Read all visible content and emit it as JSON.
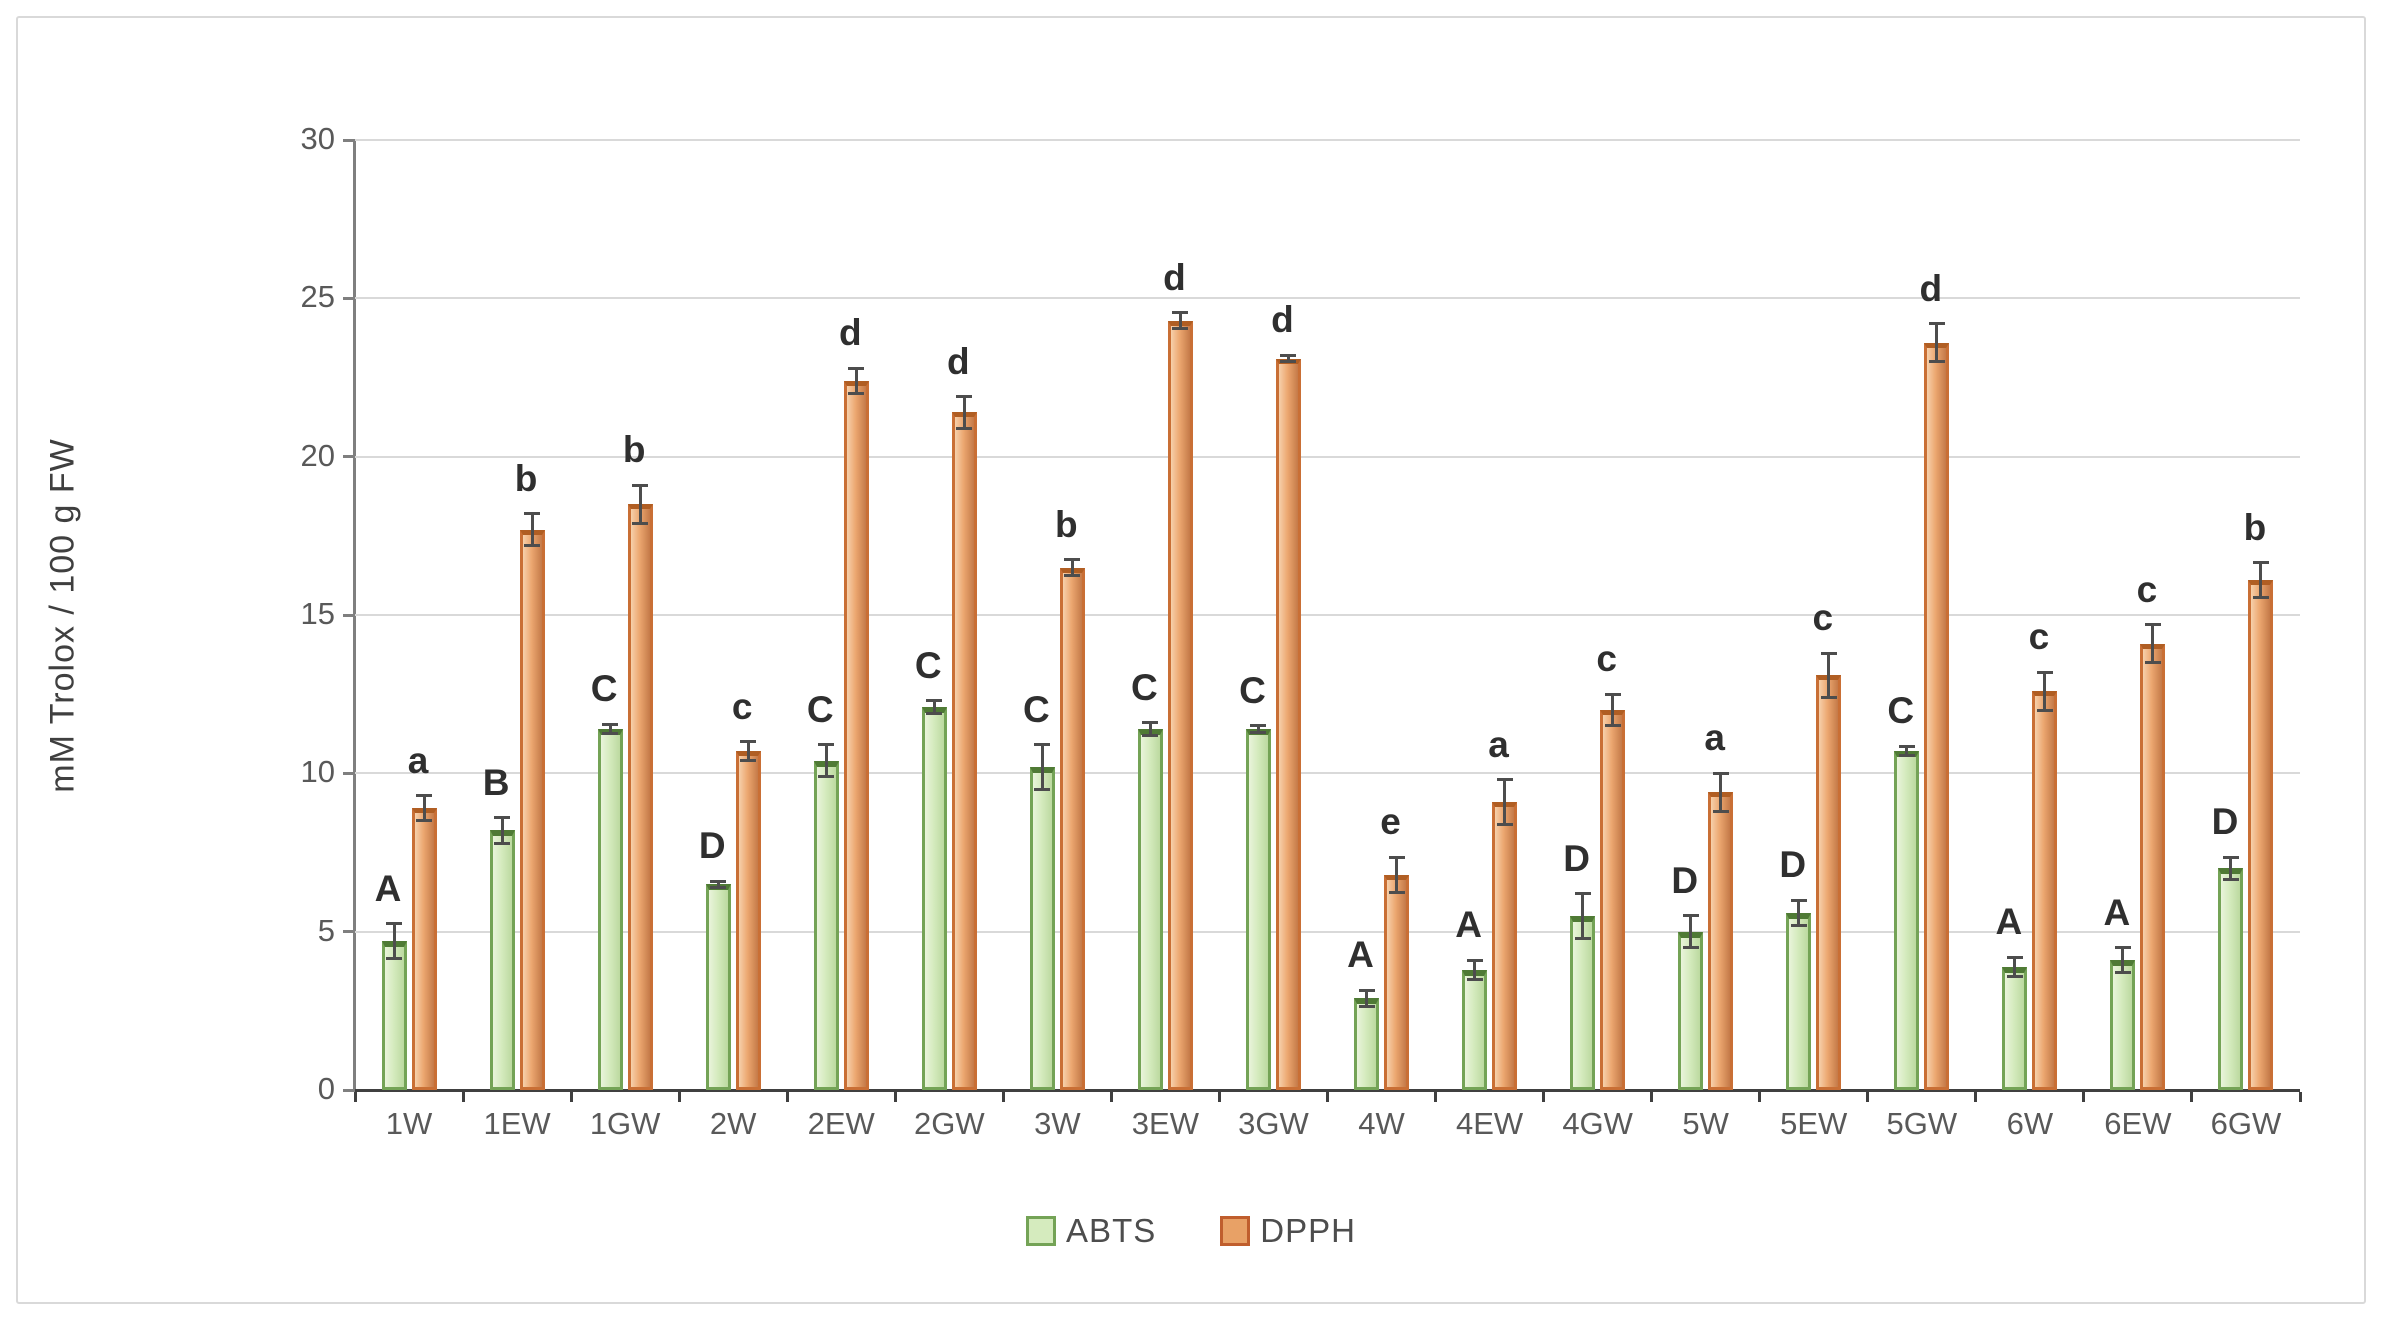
{
  "chart_data": {
    "type": "bar",
    "title": "",
    "xlabel": "",
    "ylabel": "mM Trolox / 100 g FW",
    "ylim": [
      0,
      30
    ],
    "yticks": [
      0,
      5,
      10,
      15,
      20,
      25,
      30
    ],
    "grid": "horizontal",
    "legend_position": "bottom-center",
    "categories": [
      "1W",
      "1EW",
      "1GW",
      "2W",
      "2EW",
      "2GW",
      "3W",
      "3EW",
      "3GW",
      "4W",
      "4EW",
      "4GW",
      "5W",
      "5EW",
      "5GW",
      "6W",
      "6EW",
      "6GW"
    ],
    "series": [
      {
        "name": "ABTS",
        "color_fill": "#d5ebbe",
        "color_border": "#74a356",
        "color_cap": "#4f7a35",
        "values": [
          4.7,
          8.2,
          11.4,
          6.5,
          10.4,
          12.1,
          10.2,
          11.4,
          11.4,
          2.9,
          3.8,
          5.5,
          5.0,
          5.6,
          10.7,
          3.9,
          4.1,
          7.0
        ],
        "errors": [
          0.55,
          0.4,
          0.15,
          0.1,
          0.5,
          0.2,
          0.7,
          0.2,
          0.1,
          0.25,
          0.3,
          0.7,
          0.5,
          0.4,
          0.15,
          0.3,
          0.4,
          0.35
        ],
        "letters": [
          "A",
          "B",
          "C",
          "D",
          "C",
          "C",
          "C",
          "C",
          "C",
          "A",
          "A",
          "D",
          "D",
          "D",
          "C",
          "A",
          "A",
          "D"
        ]
      },
      {
        "name": "DPPH",
        "color_fill": "#eca770",
        "color_border": "#c96f35",
        "color_cap": "#b05e23",
        "values": [
          8.9,
          17.7,
          18.5,
          10.7,
          22.4,
          21.4,
          16.5,
          24.3,
          23.1,
          6.8,
          9.1,
          12.0,
          9.4,
          13.1,
          23.6,
          12.6,
          14.1,
          16.1
        ],
        "errors": [
          0.4,
          0.5,
          0.6,
          0.3,
          0.4,
          0.5,
          0.25,
          0.25,
          0.1,
          0.55,
          0.7,
          0.5,
          0.6,
          0.7,
          0.6,
          0.6,
          0.6,
          0.55
        ],
        "letters": [
          "a",
          "b",
          "b",
          "c",
          "d",
          "d",
          "b",
          "d",
          "d",
          "e",
          "a",
          "c",
          "a",
          "c",
          "d",
          "c",
          "c",
          "b"
        ]
      }
    ],
    "error_bar_color": "#4d4d4d",
    "gridline_color": "#d9d9d9",
    "y_axis_color": "#7f7f7f",
    "x_axis_color": "#404040",
    "tick_label_color": "#595959",
    "letter_color": "#2f2f2f"
  }
}
